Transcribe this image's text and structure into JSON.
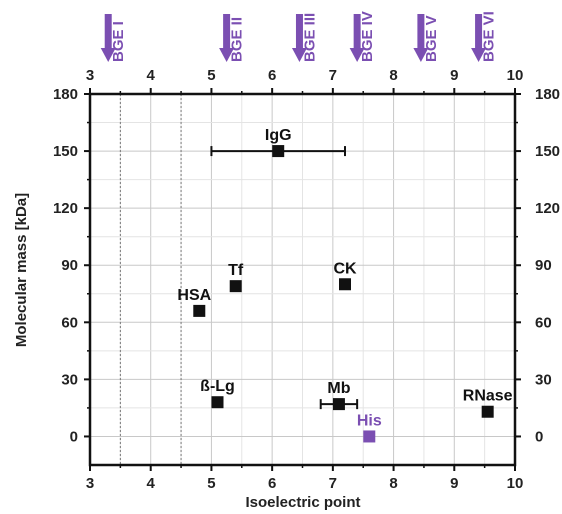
{
  "chart_data": {
    "type": "scatter",
    "xlabel": "Isoelectric point",
    "ylabel": "Molecular mass [kDa]",
    "xlim": [
      3,
      10
    ],
    "ylim": [
      -15,
      180
    ],
    "x_ticks": [
      "3",
      "4",
      "5",
      "6",
      "7",
      "8",
      "9",
      "10"
    ],
    "y_ticks": [
      "0",
      "30",
      "60",
      "90",
      "120",
      "150",
      "180"
    ],
    "grid": true,
    "colors": {
      "default": "#111111",
      "highlight": "#7b4fb2",
      "grid": "#cccccc"
    },
    "points": [
      {
        "label": "IgG",
        "x": 6.1,
        "y": 150,
        "x_err": [
          5.0,
          7.2
        ],
        "label_pos": "above"
      },
      {
        "label": "Tf",
        "x": 5.4,
        "y": 79,
        "label_pos": "above"
      },
      {
        "label": "CK",
        "x": 7.2,
        "y": 80,
        "label_pos": "above"
      },
      {
        "label": "HSA",
        "x": 4.8,
        "y": 66,
        "label_pos": "above-left"
      },
      {
        "label": "ß-Lg",
        "x": 5.1,
        "y": 18,
        "label_pos": "above"
      },
      {
        "label": "Mb",
        "x": 7.1,
        "y": 17,
        "x_err": [
          6.8,
          7.4
        ],
        "label_pos": "above"
      },
      {
        "label": "His",
        "x": 7.6,
        "y": 0,
        "label_pos": "above",
        "highlight": true
      },
      {
        "label": "RNase",
        "x": 9.55,
        "y": 13,
        "label_pos": "above"
      }
    ],
    "annotations": [
      {
        "label": "BGE I",
        "x": 3.3
      },
      {
        "label": "BGE II",
        "x": 5.25
      },
      {
        "label": "BGE III",
        "x": 6.45
      },
      {
        "label": "BGE IV",
        "x": 7.4
      },
      {
        "label": "BGE V",
        "x": 8.45
      },
      {
        "label": "BGE VI",
        "x": 9.4
      }
    ],
    "dotted_lines_x": [
      3.5,
      4.5
    ]
  }
}
